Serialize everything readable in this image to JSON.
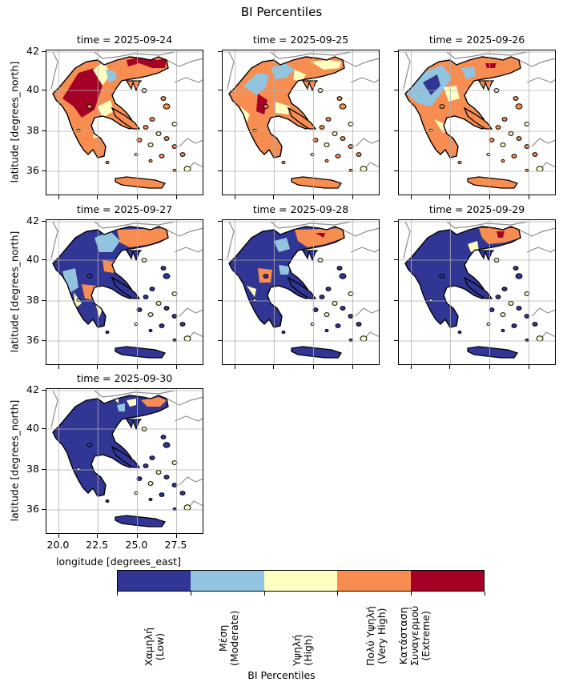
{
  "title": "BI Percentiles",
  "ylabel": "latitude [degrees_north]",
  "xlabel": "longitude [degrees_east]",
  "yticks": [
    "42",
    "40",
    "38",
    "36"
  ],
  "xticks": [
    "20.0",
    "22.5",
    "25.0",
    "27.5"
  ],
  "panels": [
    {
      "title": "time = 2025-09-24",
      "dominant": "very_high"
    },
    {
      "title": "time = 2025-09-25",
      "dominant": "very_high"
    },
    {
      "title": "time = 2025-09-26",
      "dominant": "very_high"
    },
    {
      "title": "time = 2025-09-27",
      "dominant": "mixed"
    },
    {
      "title": "time = 2025-09-28",
      "dominant": "low"
    },
    {
      "title": "time = 2025-09-29",
      "dominant": "low"
    },
    {
      "title": "time = 2025-09-30",
      "dominant": "low"
    }
  ],
  "colorbar": {
    "title": "BI Percentiles",
    "classes": [
      {
        "label": "Χαμηλή\n(Low)",
        "color": "#313695"
      },
      {
        "label": "Μέση\n(Moderate)",
        "color": "#91c4de"
      },
      {
        "label": "Υψηλή\n(High)",
        "color": "#ffffbf"
      },
      {
        "label": "Πολύ Υψηλή\n(Very High)",
        "color": "#f88d51"
      },
      {
        "label": "Κατάσταση\nΣυναγερμού\n(Extreme)",
        "color": "#a50026"
      }
    ]
  }
}
